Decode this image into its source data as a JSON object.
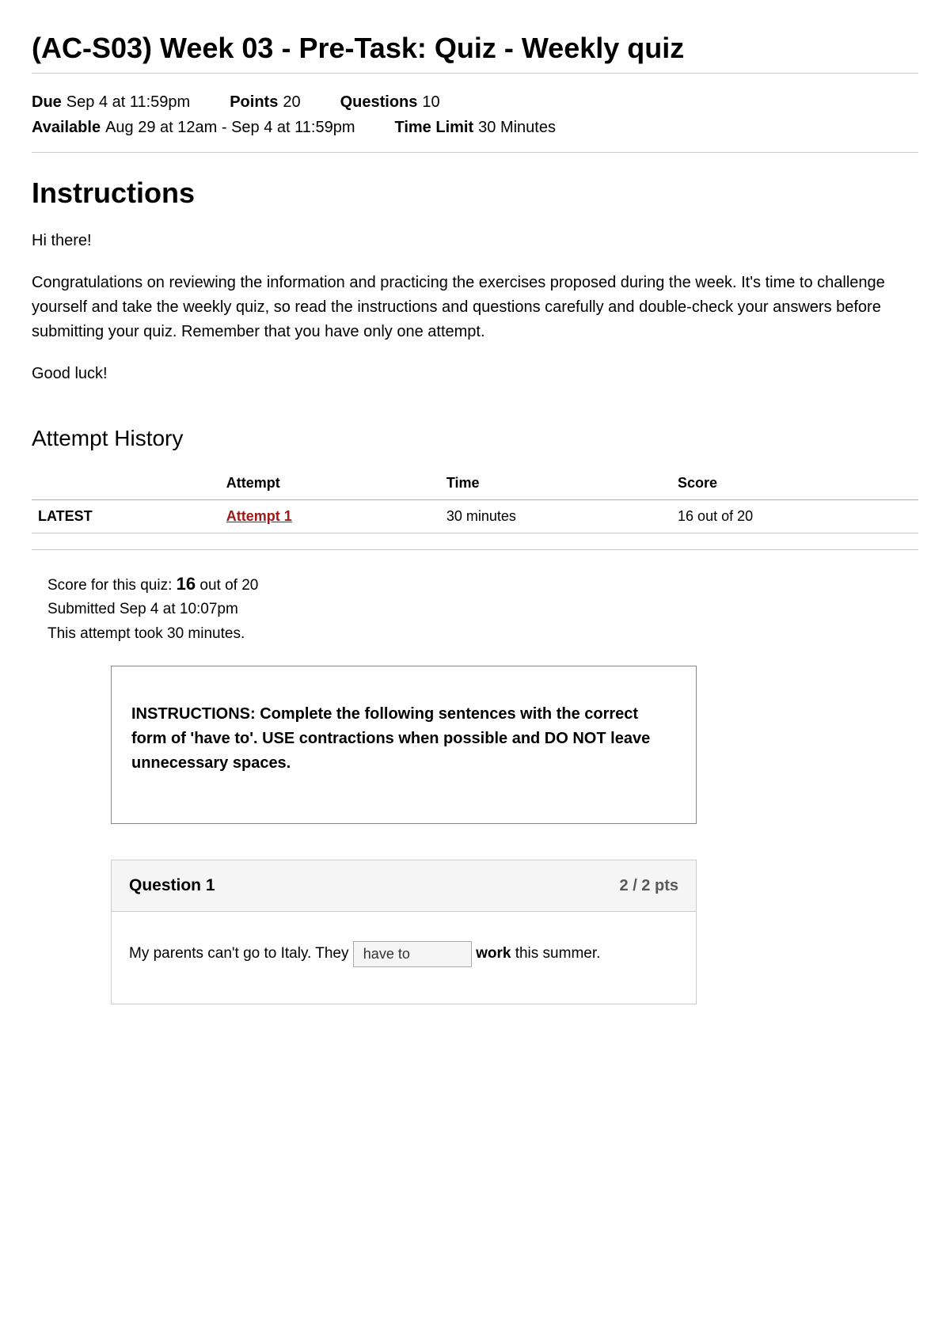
{
  "page": {
    "title": "(AC-S03) Week 03 - Pre-Task: Quiz - Weekly quiz"
  },
  "meta": {
    "due_label": "Due",
    "due_value": "Sep 4 at 11:59pm",
    "points_label": "Points",
    "points_value": "20",
    "questions_label": "Questions",
    "questions_value": "10",
    "available_label": "Available",
    "available_value": "Aug 29 at 12am - Sep 4 at 11:59pm",
    "timelimit_label": "Time Limit",
    "timelimit_value": "30 Minutes"
  },
  "instructions": {
    "heading": "Instructions",
    "p1": "Hi there!",
    "p2": "Congratulations on reviewing the information and practicing the exercises proposed during the week. It's time to challenge yourself and take the weekly quiz, so read the instructions and questions carefully and double-check your answers before submitting your quiz. Remember that you have only one attempt.",
    "p3": "Good luck!"
  },
  "history": {
    "heading": "Attempt History",
    "columns": {
      "c0": "",
      "c1": "Attempt",
      "c2": "Time",
      "c3": "Score"
    },
    "row": {
      "latest": "LATEST",
      "attempt_link": "Attempt 1 ",
      "time": "30 minutes",
      "score": "16 out of 20"
    }
  },
  "summary": {
    "line1_prefix": "Score for this quiz: ",
    "line1_score": "16",
    "line1_suffix": " out of 20",
    "line2": "Submitted Sep 4 at 10:07pm",
    "line3": "This attempt took 30 minutes."
  },
  "question_instructions": "INSTRUCTIONS: Complete the following sentences with the correct form of 'have to'.  USE contractions when possible and DO NOT leave unnecessary spaces.",
  "q1": {
    "title": "Question 1",
    "pts": "2 / 2 pts",
    "text_before": "My parents can't go to Italy. They ",
    "answer": "have to",
    "text_after_bold": " work",
    "text_after_rest": " this summer."
  },
  "colors": {
    "border": "#c7cdd1",
    "link": "#a01818",
    "header_bg": "#f5f5f5"
  }
}
